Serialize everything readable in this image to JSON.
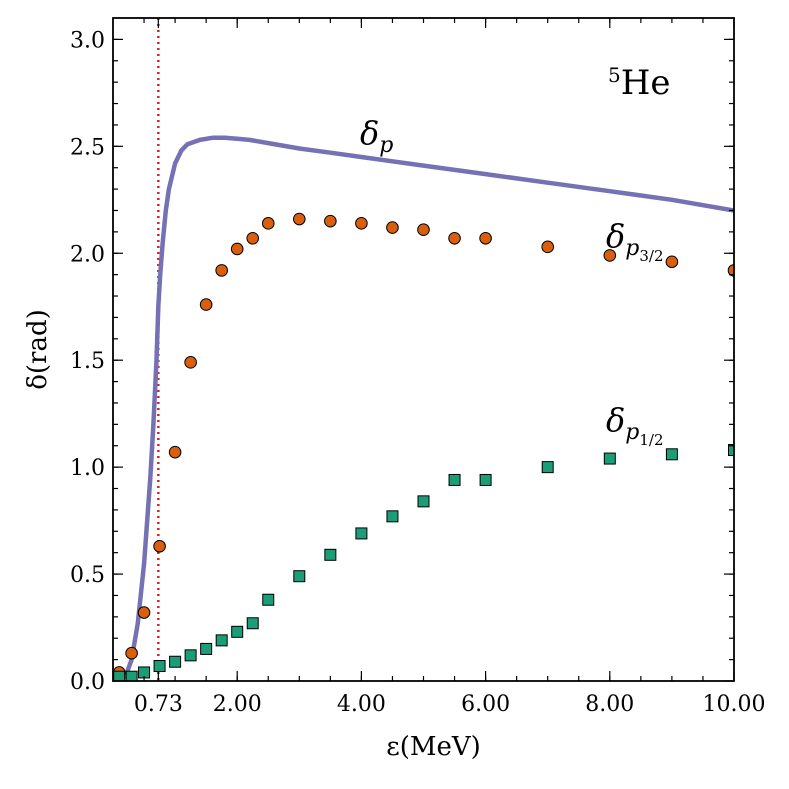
{
  "chart_data": {
    "type": "line",
    "xlabel": "ε(MeV)",
    "ylabel": "δ(rad)",
    "xlim": [
      0,
      10
    ],
    "ylim": [
      0,
      3.1
    ],
    "x_ticks": [
      {
        "value": 0.73,
        "label": "0.73"
      },
      {
        "value": 2.0,
        "label": "2.00"
      },
      {
        "value": 4.0,
        "label": "4.00"
      },
      {
        "value": 6.0,
        "label": "6.00"
      },
      {
        "value": 8.0,
        "label": "8.00"
      },
      {
        "value": 10.0,
        "label": "10.00"
      }
    ],
    "y_ticks": [
      {
        "value": 0.0,
        "label": "0.0"
      },
      {
        "value": 0.5,
        "label": "0.5"
      },
      {
        "value": 1.0,
        "label": "1.0"
      },
      {
        "value": 1.5,
        "label": "1.5"
      },
      {
        "value": 2.0,
        "label": "2.0"
      },
      {
        "value": 2.5,
        "label": "2.5"
      },
      {
        "value": 3.0,
        "label": "3.0"
      }
    ],
    "nucleus_mass_number": "5",
    "nucleus_symbol": "He",
    "reference_line": {
      "x": 0.73,
      "color": "#e41a1c",
      "style": "dotted"
    },
    "series": [
      {
        "name": "delta_p",
        "label_main": "δ",
        "label_sub": "p",
        "kind": "line",
        "color": "#7472b4",
        "x": [
          0.2,
          0.3,
          0.4,
          0.5,
          0.6,
          0.65,
          0.7,
          0.73,
          0.76,
          0.8,
          0.85,
          0.9,
          1.0,
          1.1,
          1.2,
          1.4,
          1.6,
          1.8,
          2.0,
          2.2,
          2.5,
          3.0,
          3.5,
          4.0,
          5.0,
          6.0,
          7.0,
          8.0,
          9.0,
          10.0
        ],
        "y": [
          0.02,
          0.1,
          0.27,
          0.55,
          0.95,
          1.2,
          1.5,
          1.75,
          1.9,
          2.05,
          2.2,
          2.3,
          2.42,
          2.48,
          2.51,
          2.53,
          2.54,
          2.54,
          2.535,
          2.53,
          2.515,
          2.49,
          2.47,
          2.45,
          2.41,
          2.37,
          2.33,
          2.29,
          2.25,
          2.2
        ]
      },
      {
        "name": "delta_p3/2",
        "label_main": "δ",
        "label_sub": "p",
        "label_subsub": "3/2",
        "kind": "marker-circle",
        "color": "#d95f0e",
        "x": [
          0.1,
          0.3,
          0.5,
          0.75,
          1.0,
          1.25,
          1.5,
          1.75,
          2.0,
          2.25,
          2.5,
          3.0,
          3.5,
          4.0,
          4.5,
          5.0,
          5.5,
          6.0,
          7.0,
          8.0,
          9.0,
          10.0
        ],
        "y": [
          0.04,
          0.13,
          0.32,
          0.63,
          1.07,
          1.49,
          1.76,
          1.92,
          2.02,
          2.07,
          2.14,
          2.16,
          2.15,
          2.14,
          2.12,
          2.11,
          2.07,
          2.07,
          2.03,
          1.99,
          1.96,
          1.92
        ]
      },
      {
        "name": "delta_p1/2",
        "label_main": "δ",
        "label_sub": "p",
        "label_subsub": "1/2",
        "kind": "marker-square",
        "color": "#1b9e77",
        "x": [
          0.1,
          0.3,
          0.5,
          0.75,
          1.0,
          1.25,
          1.5,
          1.75,
          2.0,
          2.25,
          2.5,
          3.0,
          3.5,
          4.0,
          4.5,
          5.0,
          5.5,
          6.0,
          7.0,
          8.0,
          9.0,
          10.0
        ],
        "y": [
          0.02,
          0.02,
          0.04,
          0.07,
          0.09,
          0.12,
          0.15,
          0.19,
          0.23,
          0.27,
          0.38,
          0.49,
          0.59,
          0.69,
          0.77,
          0.84,
          0.94,
          0.94,
          1.0,
          1.04,
          1.06,
          1.08
        ]
      }
    ]
  }
}
